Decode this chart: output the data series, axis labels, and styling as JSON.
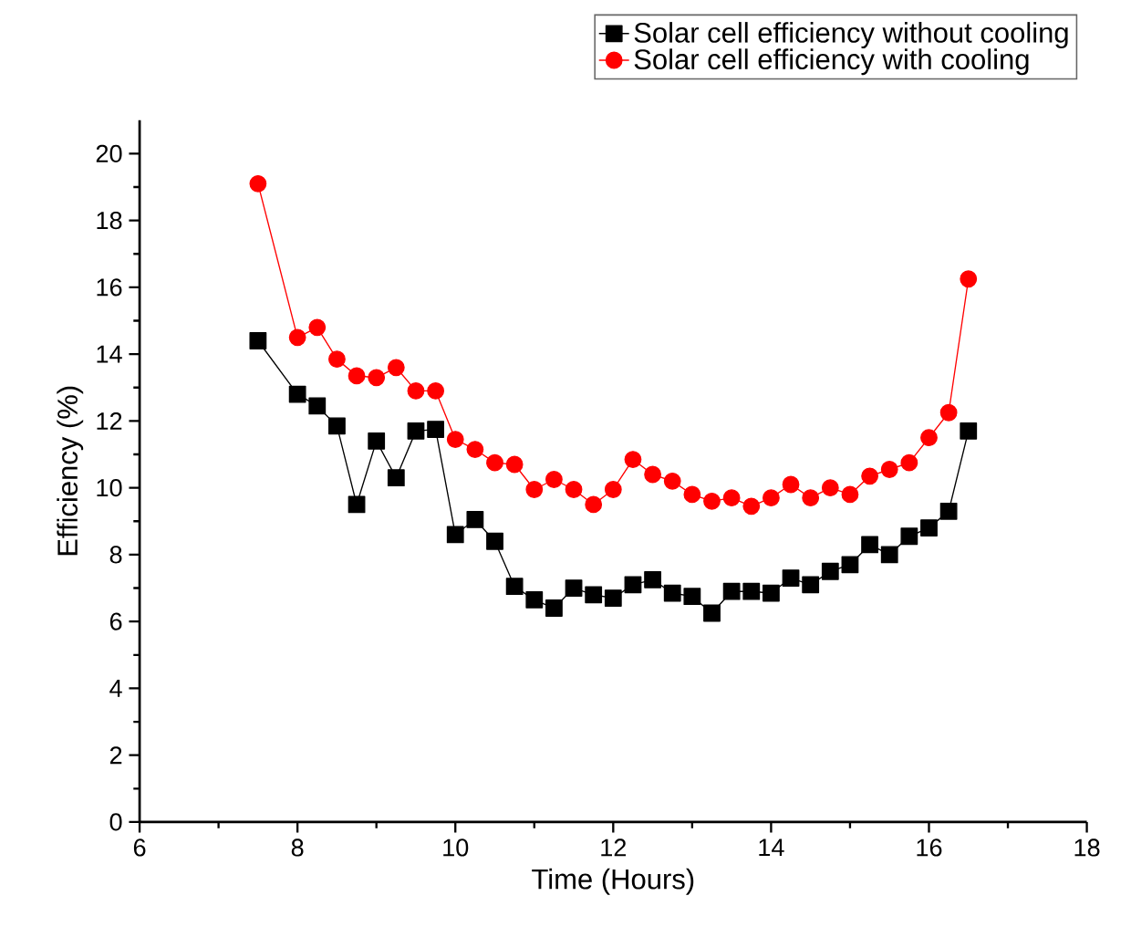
{
  "chart_data": {
    "type": "line",
    "xlabel": "Time (Hours)",
    "ylabel": "Efficiency (%)",
    "x": [
      7.5,
      8,
      8.25,
      8.5,
      8.75,
      9,
      9.25,
      9.5,
      9.75,
      10,
      10.25,
      10.5,
      10.75,
      11,
      11.25,
      11.5,
      11.75,
      12,
      12.25,
      12.5,
      12.75,
      13,
      13.25,
      13.5,
      13.75,
      14,
      14.25,
      14.5,
      14.75,
      15,
      15.25,
      15.5,
      15.75,
      16,
      16.25,
      16.5
    ],
    "series": [
      {
        "name": "Solar cell efficiency without cooling",
        "color": "#000000",
        "marker": "square",
        "values": [
          14.4,
          12.8,
          12.45,
          11.85,
          9.5,
          11.4,
          10.3,
          11.7,
          11.75,
          8.6,
          9.05,
          8.4,
          7.05,
          6.65,
          6.4,
          7.0,
          6.8,
          6.7,
          7.1,
          7.25,
          6.85,
          6.75,
          6.25,
          6.9,
          6.9,
          6.85,
          7.3,
          7.1,
          7.5,
          7.7,
          8.3,
          8.0,
          8.55,
          8.8,
          9.3,
          11.7
        ]
      },
      {
        "name": "Solar cell efficiency with cooling",
        "color": "#ff0000",
        "marker": "circle",
        "values": [
          19.1,
          14.5,
          14.8,
          13.85,
          13.35,
          13.3,
          13.6,
          12.9,
          12.9,
          11.45,
          11.15,
          10.75,
          10.7,
          9.95,
          10.25,
          9.95,
          9.5,
          9.95,
          10.85,
          10.4,
          10.2,
          9.8,
          9.6,
          9.7,
          9.45,
          9.7,
          10.1,
          9.7,
          10.0,
          9.8,
          10.35,
          10.55,
          10.75,
          11.5,
          12.25,
          16.25
        ]
      }
    ],
    "xlim": [
      6,
      18
    ],
    "xticks": [
      6,
      8,
      10,
      12,
      14,
      16,
      18
    ],
    "ylim": [
      0,
      21
    ],
    "yticks": [
      0,
      2,
      4,
      6,
      8,
      10,
      12,
      14,
      16,
      18,
      20
    ],
    "line_style": "solid",
    "grid": false,
    "legend": "top right"
  }
}
